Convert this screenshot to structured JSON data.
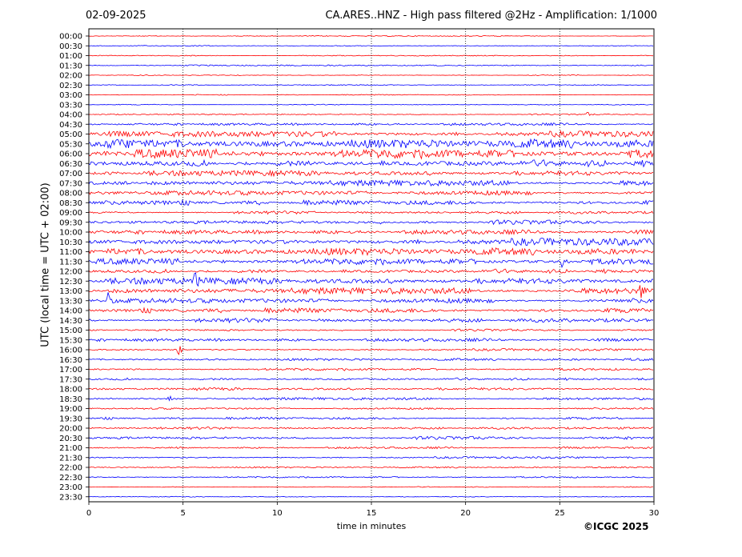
{
  "header": {
    "date": "02-09-2025",
    "title": "CA.ARES..HNZ - High pass filtered @2Hz - Amplification: 1/1000"
  },
  "footer": {
    "copyright": "©ICGC 2025"
  },
  "colors": {
    "trace_a": "#ff0000",
    "trace_b": "#0000ff",
    "frame": "#000000",
    "gridline": "#000000"
  },
  "chart_data": {
    "type": "line",
    "title": "CA.ARES..HNZ - High pass filtered @2Hz - Amplification: 1/1000",
    "xlabel": "time in minutes",
    "ylabel": "UTC (local time = UTC + 02:00)",
    "xlim": [
      0,
      30
    ],
    "x_ticks": [
      0,
      5,
      10,
      15,
      20,
      25,
      30
    ],
    "vertical_gridlines_at": [
      5,
      10,
      15,
      20,
      25
    ],
    "grid": "vertical dotted",
    "trace_colors_alternate": [
      "red",
      "blue"
    ],
    "rows": [
      "00:00",
      "00:30",
      "01:00",
      "01:30",
      "02:00",
      "02:30",
      "03:00",
      "03:30",
      "04:00",
      "04:30",
      "05:00",
      "05:30",
      "06:00",
      "06:30",
      "07:00",
      "07:30",
      "08:00",
      "08:30",
      "09:00",
      "09:30",
      "10:00",
      "10:30",
      "11:00",
      "11:30",
      "12:00",
      "12:30",
      "13:00",
      "13:30",
      "14:00",
      "14:30",
      "15:00",
      "15:30",
      "16:00",
      "16:30",
      "17:00",
      "17:30",
      "18:00",
      "18:30",
      "19:00",
      "19:30",
      "20:00",
      "20:30",
      "21:00",
      "21:30",
      "22:00",
      "22:30",
      "23:00",
      "23:30"
    ],
    "noise_level": [
      0.3,
      0.3,
      0.3,
      0.4,
      0.3,
      0.3,
      0.3,
      0.3,
      0.4,
      0.8,
      1.8,
      3.0,
      3.0,
      2.2,
      1.8,
      1.8,
      1.8,
      1.6,
      1.0,
      1.4,
      1.4,
      2.2,
      2.4,
      2.0,
      1.4,
      2.2,
      2.0,
      1.8,
      1.6,
      1.4,
      0.7,
      1.0,
      0.7,
      0.8,
      0.8,
      0.8,
      1.0,
      0.8,
      0.7,
      0.8,
      0.8,
      1.0,
      0.6,
      0.6,
      0.5,
      0.5,
      0.3,
      0.3
    ],
    "events": [
      {
        "row": "04:00",
        "minute": 26.5,
        "amplitude": 2
      },
      {
        "row": "11:30",
        "minute": 25.1,
        "amplitude": 10
      },
      {
        "row": "12:30",
        "minute": 5.6,
        "amplitude": 12
      },
      {
        "row": "13:00",
        "minute": 29.3,
        "amplitude": 8
      },
      {
        "row": "13:30",
        "minute": 1.0,
        "amplitude": 11
      },
      {
        "row": "16:00",
        "minute": 4.7,
        "amplitude": 13
      },
      {
        "row": "18:30",
        "minute": 4.2,
        "amplitude": 7
      }
    ]
  }
}
